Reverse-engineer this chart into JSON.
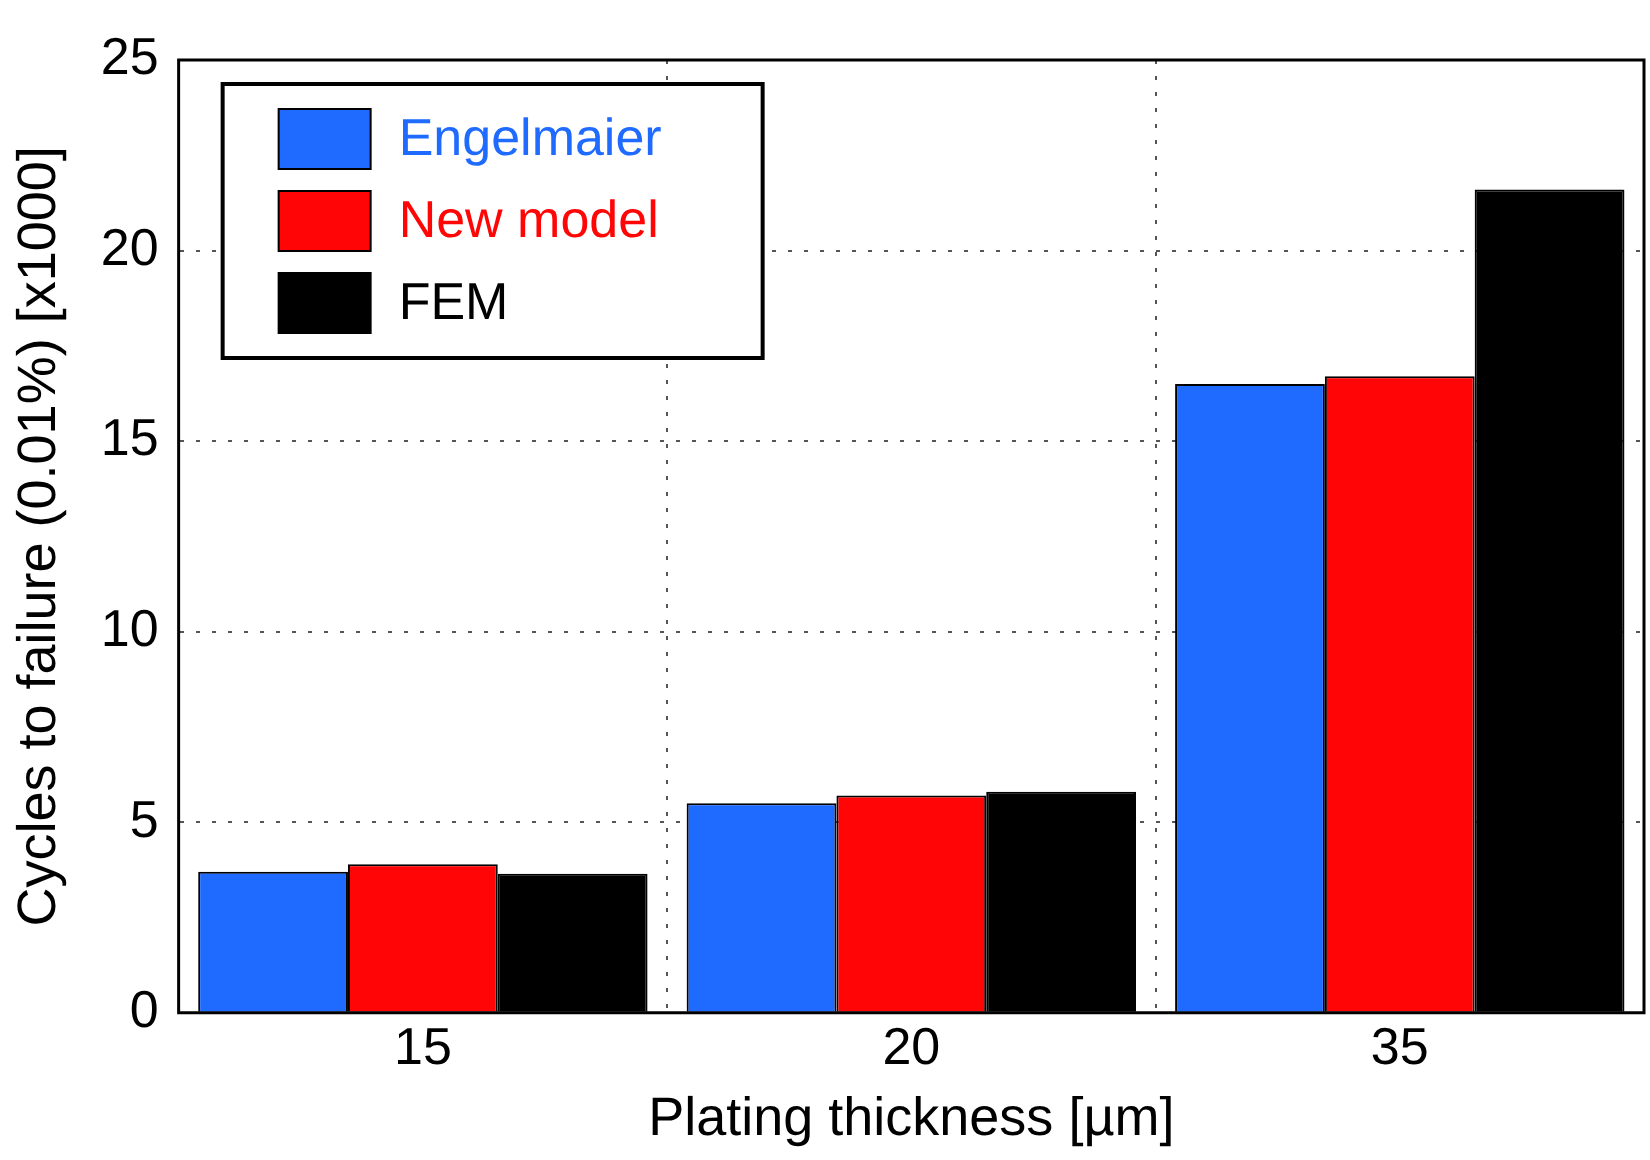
{
  "chart_data": {
    "type": "bar",
    "xlabel": "Plating thickness [µm]",
    "ylabel": "Cycles to failure (0.01%) [x1000]",
    "categories": [
      "15",
      "20",
      "35"
    ],
    "series": [
      {
        "name": "Engelmaier",
        "color": "#1f6bff",
        "values": [
          3.7,
          5.5,
          16.5
        ]
      },
      {
        "name": "New model",
        "color": "#ff0505",
        "values": [
          3.9,
          5.7,
          16.7
        ]
      },
      {
        "name": "FEM",
        "color": "#000000",
        "values": [
          3.65,
          5.8,
          21.6
        ]
      }
    ],
    "ylim": [
      0,
      25
    ],
    "yticks": [
      0,
      5,
      10,
      15,
      20,
      25
    ],
    "grid": true,
    "legend": "top left"
  }
}
